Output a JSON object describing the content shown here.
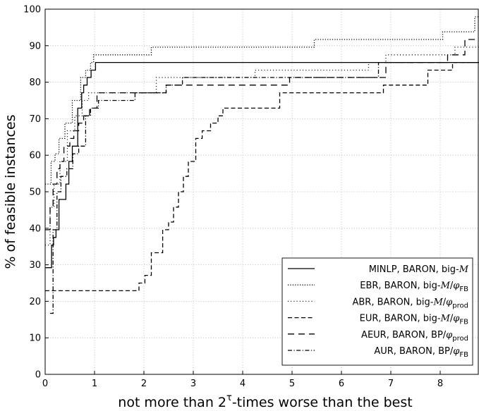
{
  "chart_data": {
    "type": "line",
    "title": "",
    "xlabel": "not more than 2τ-times worse than the best",
    "xlabel_parts": {
      "prefix": "not more than 2",
      "sup": "τ",
      "suffix": "-times worse than the best"
    },
    "ylabel": "% of feasible instances",
    "xlim": [
      0,
      8.8
    ],
    "ylim": [
      0,
      100
    ],
    "xticks": [
      0,
      1,
      2,
      3,
      4,
      5,
      6,
      7,
      8
    ],
    "yticks": [
      0,
      10,
      20,
      30,
      40,
      50,
      60,
      70,
      80,
      90,
      100
    ],
    "grid": true,
    "legend_position": "lower-right",
    "series": [
      {
        "name": "MINLP, BARON, big-M",
        "label_parts": [
          [
            "MINLP, BARON, big-",
            "n"
          ],
          [
            "M",
            "i"
          ]
        ],
        "dash": "",
        "x": [
          0,
          0.13,
          0.17,
          0.22,
          0.28,
          0.42,
          0.48,
          0.55,
          0.66,
          0.74,
          0.78,
          0.85,
          0.93,
          1.02,
          1.12,
          1.85,
          8.8
        ],
        "y": [
          29.2,
          35.4,
          37.5,
          39.6,
          47.9,
          52.1,
          58.3,
          62.5,
          72.9,
          77.1,
          79.2,
          81.3,
          83.3,
          85.4,
          85.4,
          85.4,
          85.4
        ]
      },
      {
        "name": "EBR, BARON, big-M/φFB",
        "label_parts": [
          [
            "EBR, BARON, big-",
            "n"
          ],
          [
            "M",
            "i"
          ],
          [
            "/",
            "n"
          ],
          [
            "φ",
            "i"
          ],
          [
            "FB",
            "sub"
          ]
        ],
        "dash": "1.2 2.2",
        "x": [
          0,
          0.12,
          0.2,
          0.28,
          0.4,
          0.55,
          0.72,
          0.82,
          0.92,
          0.98,
          2.15,
          5.45,
          8.05,
          8.7,
          8.8
        ],
        "y": [
          52.1,
          58.3,
          60.4,
          64.6,
          68.8,
          75.0,
          81.3,
          83.3,
          85.4,
          87.5,
          89.6,
          91.7,
          93.8,
          97.9,
          97.9
        ]
      },
      {
        "name": "ABR, BARON, big-M/φprod",
        "label_parts": [
          [
            "ABR, BARON, big-",
            "n"
          ],
          [
            "M",
            "i"
          ],
          [
            "/",
            "n"
          ],
          [
            "φ",
            "i"
          ],
          [
            "prod",
            "sub"
          ]
        ],
        "dash": "1 3.2",
        "x": [
          0,
          0.1,
          0.18,
          0.3,
          0.45,
          0.6,
          0.75,
          0.88,
          1.25,
          2.25,
          4.25,
          6.55,
          6.9,
          8.3,
          8.8
        ],
        "y": [
          35.4,
          45.8,
          52.1,
          58.3,
          66.7,
          70.8,
          75.0,
          77.1,
          77.1,
          81.3,
          83.3,
          85.4,
          87.5,
          89.6,
          91.7
        ]
      },
      {
        "name": "EUR, BARON, big-M/φFB",
        "label_parts": [
          [
            "EUR, BARON, big-",
            "n"
          ],
          [
            "M",
            "i"
          ],
          [
            "/",
            "n"
          ],
          [
            "φ",
            "i"
          ],
          [
            "FB",
            "sub"
          ]
        ],
        "dash": "6 3.5",
        "x": [
          0,
          1.9,
          2.02,
          2.15,
          2.38,
          2.5,
          2.6,
          2.7,
          2.8,
          2.9,
          3.05,
          3.18,
          3.35,
          3.5,
          3.6,
          4.75,
          6.85,
          7.75,
          8.25,
          8.8
        ],
        "y": [
          22.9,
          25.0,
          27.1,
          33.3,
          39.6,
          41.7,
          45.8,
          50.0,
          54.2,
          58.3,
          64.6,
          66.7,
          68.8,
          70.8,
          72.9,
          77.1,
          79.2,
          83.3,
          85.4,
          85.4
        ]
      },
      {
        "name": "AEUR, BARON, BP/φprod",
        "label_parts": [
          [
            "AEUR, BARON, BP/",
            "n"
          ],
          [
            "φ",
            "i"
          ],
          [
            "prod",
            "sub"
          ]
        ],
        "dash": "9 6",
        "x": [
          0,
          0.1,
          0.16,
          0.24,
          0.3,
          0.38,
          0.5,
          0.58,
          0.68,
          0.78,
          0.9,
          1.05,
          2.45,
          4.95,
          6.9,
          8.15,
          8.5,
          8.8
        ],
        "y": [
          39.6,
          45.8,
          52.1,
          56.3,
          58.3,
          62.5,
          64.6,
          66.7,
          68.8,
          70.8,
          72.9,
          77.1,
          79.2,
          81.3,
          85.4,
          87.5,
          91.7,
          91.7
        ]
      },
      {
        "name": "AUR, BARON, BP/φFB",
        "label_parts": [
          [
            "AUR, BARON, BP/",
            "n"
          ],
          [
            "φ",
            "i"
          ],
          [
            "FB",
            "sub"
          ]
        ],
        "dash": "6 2.5 1.2 2.5",
        "x": [
          0.1,
          0.16,
          0.24,
          0.32,
          0.44,
          0.56,
          0.68,
          0.82,
          0.92,
          1.08,
          1.82,
          2.45,
          2.78,
          3.62,
          6.75,
          8.8
        ],
        "y": [
          16.7,
          39.6,
          50.0,
          54.2,
          56.3,
          60.4,
          62.5,
          70.8,
          72.9,
          75.0,
          77.1,
          79.2,
          81.3,
          81.3,
          85.4,
          85.4
        ]
      }
    ]
  }
}
